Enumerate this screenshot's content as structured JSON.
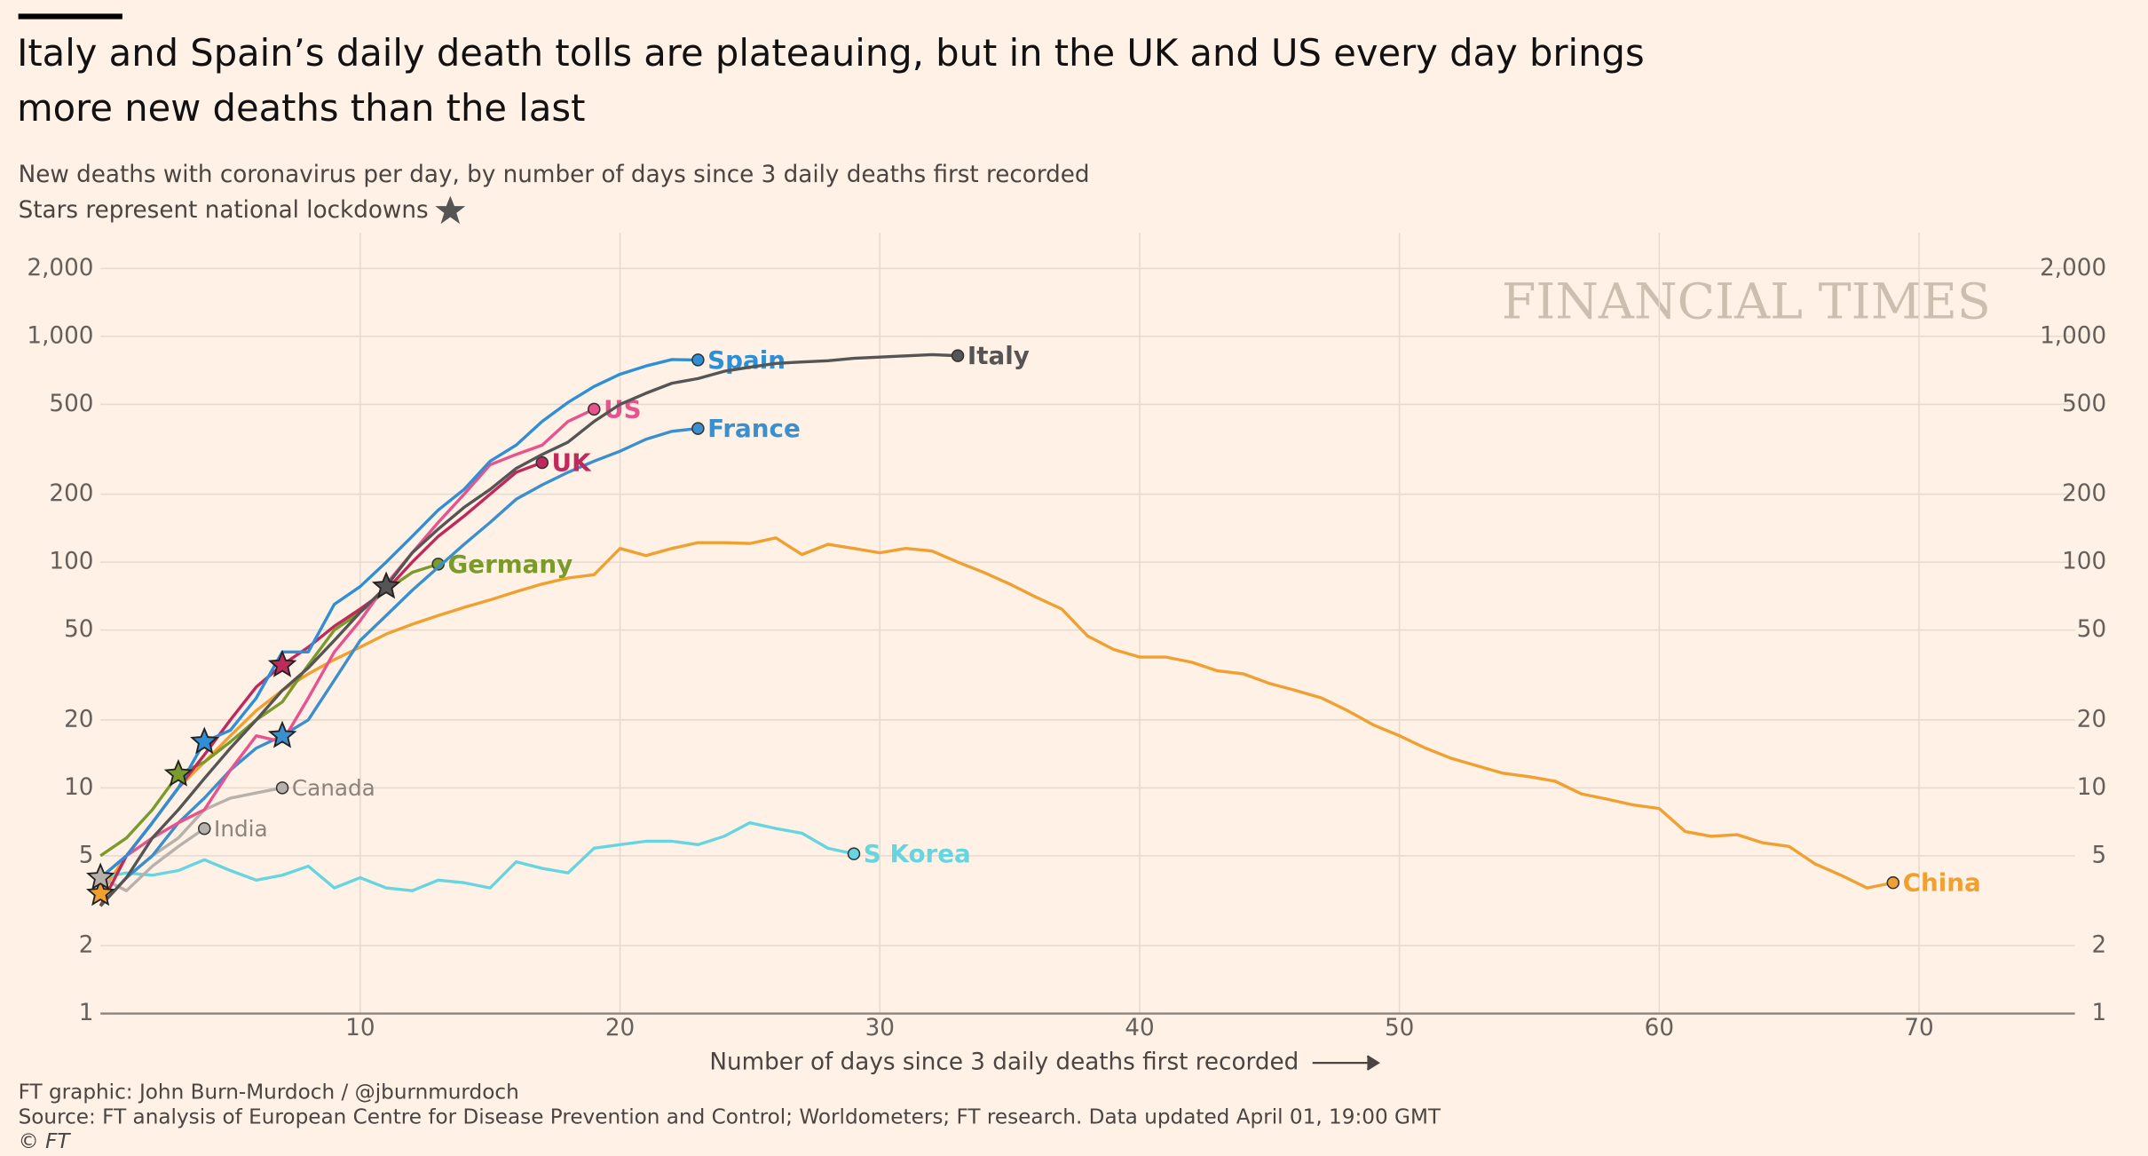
{
  "chart_data": {
    "type": "line",
    "title": "Italy and Spain’s daily death tolls are plateauing, but in the UK and US every day brings more new deaths than the last",
    "subtitle": "New deaths with coronavirus per day, by number of days since 3 daily deaths first recorded",
    "subtitle2": "Stars represent national lockdowns",
    "watermark": "FINANCIAL TIMES",
    "x_label": "Number of days since 3 daily deaths first recorded",
    "credit": "FT graphic: John Burn-Murdoch / @jburnmurdoch",
    "source": "Source: FT analysis of European Centre for Disease Prevention and Control; Worldometers; FT research. Data updated April 01, 19:00 GMT",
    "copyright": "© FT",
    "log_y": true,
    "grid": true,
    "xlim": [
      0,
      76
    ],
    "xticks": [
      10,
      20,
      30,
      40,
      50,
      60,
      70
    ],
    "ylim": [
      1,
      2000
    ],
    "yticks": [
      1,
      2,
      5,
      10,
      20,
      50,
      100,
      200,
      500,
      {
        "value": 1000,
        "label": "1,000"
      },
      {
        "value": 2000,
        "label": "2,000"
      }
    ],
    "series": [
      {
        "name": "China",
        "color": "#f0a030",
        "lockdown": 0,
        "x": [
          0,
          1,
          2,
          3,
          4,
          5,
          6,
          7,
          8,
          9,
          10,
          11,
          12,
          13,
          14,
          15,
          16,
          17,
          18,
          19,
          20,
          21,
          22,
          23,
          24,
          25,
          26,
          27,
          28,
          29,
          30,
          31,
          32,
          33,
          34,
          35,
          36,
          37,
          38,
          39,
          40,
          41,
          42,
          43,
          44,
          45,
          46,
          47,
          48,
          49,
          50,
          51,
          52,
          53,
          54,
          55,
          56,
          57,
          58,
          59,
          60,
          61,
          62,
          63,
          64,
          65,
          66,
          67,
          68,
          69
        ],
        "values": [
          3.4,
          5,
          7,
          10,
          13,
          17,
          22,
          27,
          32,
          37,
          42,
          48,
          53,
          58,
          63,
          68,
          74,
          80,
          85,
          88,
          115,
          107,
          115,
          122,
          122,
          121,
          128,
          108,
          120,
          115,
          110,
          115,
          112,
          100,
          90,
          80,
          70,
          62,
          47,
          41,
          38,
          38,
          36,
          33,
          32,
          29,
          27,
          25,
          22,
          19,
          17,
          15,
          13.5,
          12.5,
          11.6,
          11.2,
          10.7,
          9.4,
          8.9,
          8.4,
          8.1,
          6.4,
          6.1,
          6.2,
          5.7,
          5.5,
          4.6,
          4.1,
          3.6,
          3.8
        ]
      },
      {
        "name": "S Korea",
        "color": "#66d5e0",
        "x": [
          0,
          1,
          2,
          3,
          4,
          5,
          6,
          7,
          8,
          9,
          10,
          11,
          12,
          13,
          14,
          15,
          16,
          17,
          18,
          19,
          20,
          21,
          22,
          23,
          24,
          25,
          26,
          27,
          28,
          29
        ],
        "values": [
          4,
          4.2,
          4.1,
          4.3,
          4.8,
          4.3,
          3.9,
          4.1,
          4.5,
          3.6,
          4.0,
          3.6,
          3.5,
          3.9,
          3.8,
          3.6,
          4.7,
          4.4,
          4.2,
          5.4,
          5.6,
          5.8,
          5.8,
          5.6,
          6.1,
          7.0,
          6.6,
          6.3,
          5.4,
          5.1
        ]
      },
      {
        "name": "Canada",
        "color": "#b8b0aa",
        "x": [
          0,
          1,
          2,
          3,
          4,
          5,
          6,
          7
        ],
        "values": [
          3,
          4,
          5,
          6,
          8,
          9,
          9.5,
          10
        ]
      },
      {
        "name": "India",
        "color": "#b8b0aa",
        "lockdown": 0,
        "x": [
          0,
          1,
          2,
          3,
          4
        ],
        "values": [
          4,
          3.5,
          4.5,
          5.5,
          6.6
        ]
      },
      {
        "name": "Germany",
        "color": "#7a9a2b",
        "lockdown": 3,
        "x": [
          0,
          1,
          2,
          3,
          4,
          5,
          6,
          7,
          8,
          9,
          10,
          11,
          12,
          13
        ],
        "values": [
          5,
          6,
          8,
          11.5,
          13,
          16,
          20,
          24,
          35,
          50,
          60,
          75,
          90,
          98
        ]
      },
      {
        "name": "France",
        "color": "#3a8fcf",
        "lockdown": 7,
        "x": [
          0,
          1,
          2,
          3,
          4,
          5,
          6,
          7,
          8,
          9,
          10,
          11,
          12,
          13,
          14,
          15,
          16,
          17,
          18,
          19,
          20,
          21,
          22,
          23
        ],
        "values": [
          3,
          4,
          5,
          7,
          9,
          12,
          15,
          17,
          20,
          30,
          45,
          58,
          75,
          95,
          120,
          150,
          190,
          220,
          250,
          280,
          310,
          350,
          380,
          391
        ]
      },
      {
        "name": "UK",
        "color": "#c0295c",
        "lockdown": 7,
        "x": [
          0,
          1,
          2,
          3,
          4,
          5,
          6,
          7,
          8,
          9,
          10,
          11,
          12,
          13,
          14,
          15,
          16,
          17
        ],
        "values": [
          3,
          5,
          7,
          10,
          14,
          20,
          28,
          35,
          42,
          52,
          62,
          75,
          100,
          130,
          160,
          200,
          250,
          276
        ]
      },
      {
        "name": "US",
        "color": "#e8538f",
        "x": [
          0,
          1,
          2,
          3,
          4,
          5,
          6,
          7,
          8,
          9,
          10,
          11,
          12,
          13,
          14,
          15,
          16,
          17,
          18,
          19
        ],
        "values": [
          4,
          5,
          6,
          7,
          8,
          12,
          17,
          16,
          25,
          40,
          55,
          80,
          110,
          150,
          200,
          270,
          300,
          330,
          420,
          476
        ]
      },
      {
        "name": "Spain",
        "color": "#2e8fd6",
        "lockdown": 4,
        "x": [
          0,
          1,
          2,
          3,
          4,
          5,
          6,
          7,
          8,
          9,
          10,
          11,
          12,
          13,
          14,
          15,
          16,
          17,
          18,
          19,
          20,
          21,
          22,
          23
        ],
        "values": [
          4,
          5,
          7,
          10,
          16,
          18,
          25,
          40,
          40,
          65,
          78,
          100,
          130,
          170,
          210,
          280,
          330,
          420,
          510,
          600,
          680,
          740,
          790,
          787
        ]
      },
      {
        "name": "Italy",
        "color": "#555555",
        "lockdown": 11,
        "x": [
          0,
          1,
          2,
          3,
          4,
          5,
          6,
          7,
          8,
          9,
          10,
          11,
          12,
          13,
          14,
          15,
          16,
          17,
          18,
          19,
          20,
          21,
          22,
          23,
          24,
          25,
          26,
          27,
          28,
          29,
          30,
          31,
          32,
          33
        ],
        "values": [
          3,
          4,
          6,
          8,
          11,
          15,
          20,
          27,
          34,
          45,
          60,
          78,
          110,
          140,
          175,
          210,
          260,
          300,
          340,
          420,
          500,
          560,
          620,
          650,
          700,
          730,
          760,
          770,
          780,
          800,
          810,
          820,
          830,
          821
        ]
      }
    ]
  }
}
